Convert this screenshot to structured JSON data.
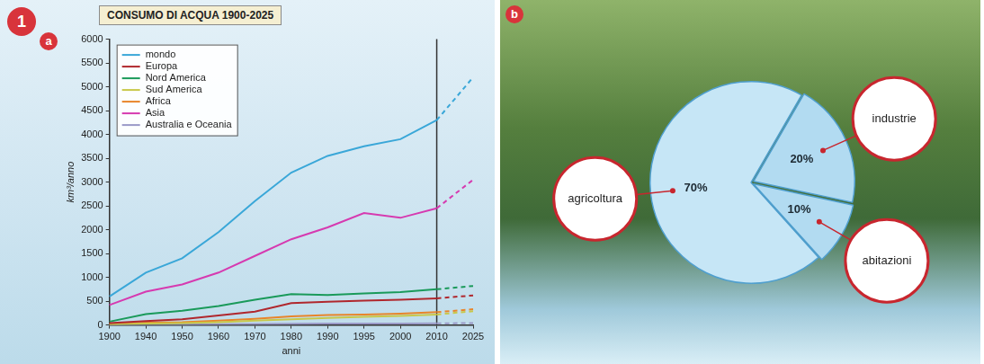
{
  "figure_number": "1",
  "chart_data": [
    {
      "panel": "a",
      "type": "line",
      "title": "CONSUMO DI ACQUA 1900-2025",
      "x_label": "anni",
      "y_label": "km³/anno",
      "categories": [
        "1900",
        "1940",
        "1950",
        "1960",
        "1970",
        "1980",
        "1990",
        "1995",
        "2000",
        "2010",
        "2025"
      ],
      "ylim": [
        0,
        6000
      ],
      "yticks": [
        0,
        500,
        1000,
        1500,
        2000,
        2500,
        3000,
        3500,
        4000,
        4500,
        5000,
        5500,
        6000
      ],
      "grid": false,
      "legend": "upper left",
      "series": [
        {
          "name": "mondo",
          "color": "#3aa7d8",
          "line_style": "solid",
          "values": [
            600,
            1100,
            1400,
            1950,
            2600,
            3200,
            3550,
            3750,
            3900,
            4300,
            null
          ]
        },
        {
          "name": "Europa",
          "color": "#b0272d",
          "line_style": "solid",
          "values": [
            40,
            80,
            120,
            200,
            280,
            460,
            490,
            510,
            530,
            560,
            null
          ]
        },
        {
          "name": "Nord America",
          "color": "#1a9a5a",
          "line_style": "solid",
          "values": [
            70,
            230,
            300,
            400,
            530,
            650,
            630,
            660,
            690,
            750,
            null
          ]
        },
        {
          "name": "Sud America",
          "color": "#c8c84a",
          "line_style": "solid",
          "values": [
            10,
            30,
            40,
            60,
            90,
            120,
            150,
            170,
            190,
            220,
            null
          ]
        },
        {
          "name": "Africa",
          "color": "#e8852a",
          "line_style": "solid",
          "values": [
            20,
            50,
            60,
            90,
            130,
            180,
            210,
            220,
            240,
            270,
            null
          ]
        },
        {
          "name": "Asia",
          "color": "#d63ab0",
          "line_style": "solid",
          "values": [
            420,
            700,
            850,
            1100,
            1450,
            1800,
            2050,
            2350,
            2250,
            2450,
            null
          ]
        },
        {
          "name": "Australia e Oceania",
          "color": "#9a9ac8",
          "line_style": "solid",
          "values": [
            5,
            10,
            12,
            15,
            20,
            25,
            28,
            30,
            32,
            35,
            null
          ]
        },
        {
          "name": "mondo",
          "color": "#3aa7d8",
          "line_style": "dashed",
          "values": [
            null,
            null,
            null,
            null,
            null,
            null,
            null,
            null,
            null,
            4300,
            5200
          ]
        },
        {
          "name": "Europa",
          "color": "#b0272d",
          "line_style": "dashed",
          "values": [
            null,
            null,
            null,
            null,
            null,
            null,
            null,
            null,
            null,
            560,
            620
          ]
        },
        {
          "name": "Nord America",
          "color": "#1a9a5a",
          "line_style": "dashed",
          "values": [
            null,
            null,
            null,
            null,
            null,
            null,
            null,
            null,
            null,
            750,
            820
          ]
        },
        {
          "name": "Sud America",
          "color": "#c8c84a",
          "line_style": "dashed",
          "values": [
            null,
            null,
            null,
            null,
            null,
            null,
            null,
            null,
            null,
            220,
            290
          ]
        },
        {
          "name": "Africa",
          "color": "#e8852a",
          "line_style": "dashed",
          "values": [
            null,
            null,
            null,
            null,
            null,
            null,
            null,
            null,
            null,
            270,
            330
          ]
        },
        {
          "name": "Asia",
          "color": "#d63ab0",
          "line_style": "dashed",
          "values": [
            null,
            null,
            null,
            null,
            null,
            null,
            null,
            null,
            null,
            2450,
            3050
          ]
        },
        {
          "name": "Australia e Oceania",
          "color": "#9a9ac8",
          "line_style": "dashed",
          "values": [
            null,
            null,
            null,
            null,
            null,
            null,
            null,
            null,
            null,
            35,
            40
          ]
        }
      ]
    },
    {
      "panel": "b",
      "type": "pie",
      "categories": [
        "agricoltura",
        "industrie",
        "abitazioni"
      ],
      "values": [
        70,
        20,
        10
      ],
      "value_labels": [
        "70%",
        "20%",
        "10%"
      ],
      "colors": [
        "#c6e6f6",
        "#b2dbf1",
        "#b2dbf1"
      ],
      "data_labels": true
    }
  ]
}
